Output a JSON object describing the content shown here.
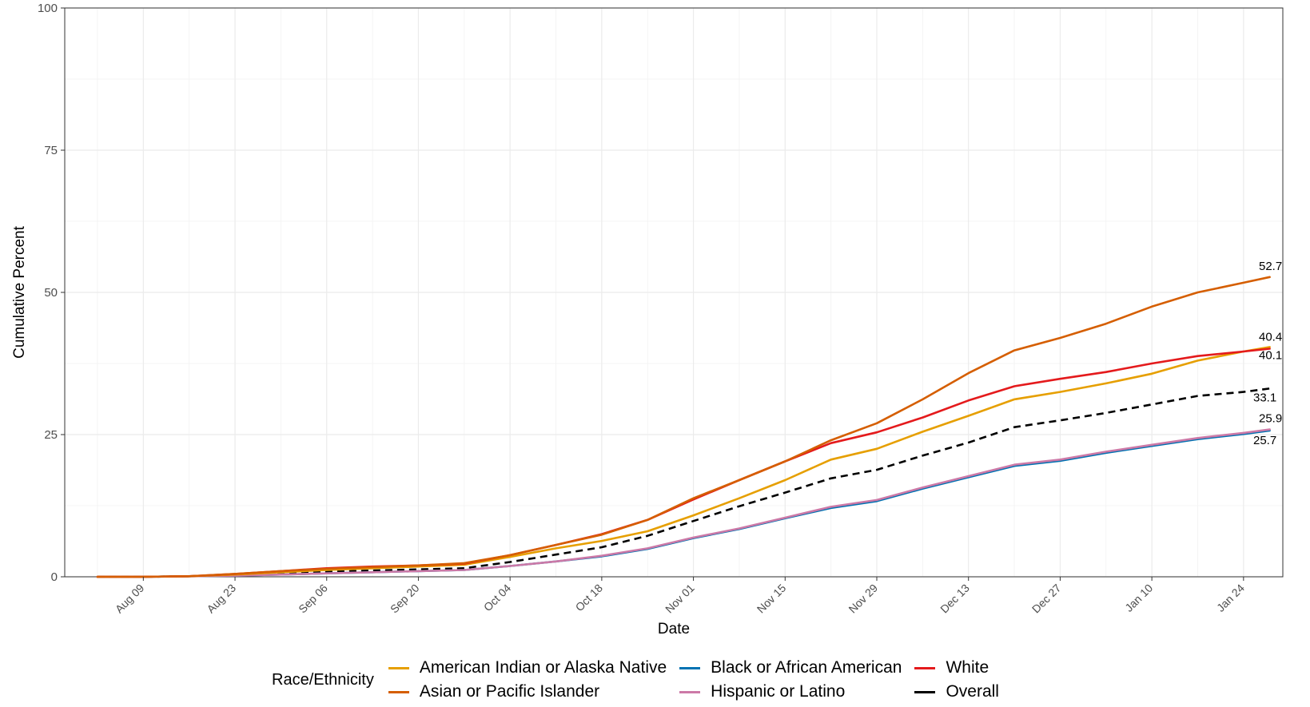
{
  "chart_data": {
    "type": "line",
    "title": "",
    "xlabel": "Date",
    "ylabel": "Cumulative Percent",
    "ylim": [
      0,
      100
    ],
    "yticks": [
      0,
      25,
      50,
      75,
      100
    ],
    "xlim": [
      "2020-07-28",
      "2021-01-30"
    ],
    "xticks": [
      {
        "date": "2020-08-09",
        "label": "Aug 09"
      },
      {
        "date": "2020-08-23",
        "label": "Aug 23"
      },
      {
        "date": "2020-09-06",
        "label": "Sep 06"
      },
      {
        "date": "2020-09-20",
        "label": "Sep 20"
      },
      {
        "date": "2020-10-04",
        "label": "Oct 04"
      },
      {
        "date": "2020-10-18",
        "label": "Oct 18"
      },
      {
        "date": "2020-11-01",
        "label": "Nov 01"
      },
      {
        "date": "2020-11-15",
        "label": "Nov 15"
      },
      {
        "date": "2020-11-29",
        "label": "Nov 29"
      },
      {
        "date": "2020-12-13",
        "label": "Dec 13"
      },
      {
        "date": "2020-12-27",
        "label": "Dec 27"
      },
      {
        "date": "2021-01-10",
        "label": "Jan 10"
      },
      {
        "date": "2021-01-24",
        "label": "Jan 24"
      }
    ],
    "grid": true,
    "legend": {
      "title": "Race/Ethnicity",
      "position": "bottom"
    },
    "x": [
      "2020-08-02",
      "2020-08-09",
      "2020-08-16",
      "2020-08-23",
      "2020-08-30",
      "2020-09-06",
      "2020-09-13",
      "2020-09-20",
      "2020-09-27",
      "2020-10-04",
      "2020-10-11",
      "2020-10-18",
      "2020-10-25",
      "2020-11-01",
      "2020-11-08",
      "2020-11-15",
      "2020-11-22",
      "2020-11-29",
      "2020-12-06",
      "2020-12-13",
      "2020-12-20",
      "2020-12-27",
      "2021-01-03",
      "2021-01-10",
      "2021-01-17",
      "2021-01-24",
      "2021-01-28"
    ],
    "series": [
      {
        "name": "American Indian or Alaska Native",
        "color": "#E69F00",
        "dashed": false,
        "values": [
          0,
          0,
          0.1,
          0.4,
          0.8,
          1.2,
          1.5,
          1.8,
          2.1,
          3.5,
          5.0,
          6.3,
          8.0,
          10.8,
          13.8,
          17.0,
          20.6,
          22.5,
          25.5,
          28.3,
          31.2,
          32.5,
          34.0,
          35.7,
          38.0,
          39.6,
          40.4
        ],
        "end_label": "40.4"
      },
      {
        "name": "Asian or Pacific Islander",
        "color": "#D55E00",
        "dashed": false,
        "values": [
          0,
          0,
          0.1,
          0.5,
          1.0,
          1.4,
          1.7,
          2.0,
          2.4,
          3.8,
          5.6,
          7.4,
          10.0,
          13.8,
          17.0,
          20.3,
          24.0,
          27.0,
          31.2,
          35.8,
          39.8,
          42.0,
          44.5,
          47.5,
          50.0,
          51.7,
          52.7
        ],
        "end_label": "52.7"
      },
      {
        "name": "Black or African American",
        "color": "#0072B2",
        "dashed": false,
        "values": [
          0,
          0,
          0.1,
          0.2,
          0.4,
          0.6,
          0.8,
          1.0,
          1.2,
          1.9,
          2.7,
          3.6,
          4.9,
          6.8,
          8.4,
          10.3,
          12.1,
          13.3,
          15.5,
          17.5,
          19.5,
          20.4,
          21.8,
          23.0,
          24.2,
          25.1,
          25.7
        ],
        "end_label": "25.7"
      },
      {
        "name": "Hispanic or Latino",
        "color": "#CC79A7",
        "dashed": false,
        "values": [
          0,
          0,
          0.1,
          0.2,
          0.4,
          0.6,
          0.8,
          1.0,
          1.2,
          1.9,
          2.7,
          3.7,
          5.0,
          6.9,
          8.5,
          10.4,
          12.3,
          13.5,
          15.7,
          17.7,
          19.7,
          20.6,
          22.0,
          23.2,
          24.4,
          25.3,
          25.9
        ],
        "end_label": "25.9"
      },
      {
        "name": "White",
        "color": "#E41A1C",
        "dashed": false,
        "values": [
          0,
          0,
          0.1,
          0.5,
          1.0,
          1.5,
          1.8,
          2.0,
          2.3,
          3.8,
          5.6,
          7.5,
          10.0,
          13.6,
          17.0,
          20.3,
          23.5,
          25.4,
          28.0,
          31.0,
          33.5,
          34.8,
          36.0,
          37.5,
          38.8,
          39.6,
          40.1
        ],
        "end_label": "40.1"
      },
      {
        "name": "Overall",
        "color": "#000000",
        "dashed": true,
        "values": [
          0,
          0,
          0.1,
          0.3,
          0.6,
          0.9,
          1.1,
          1.3,
          1.5,
          2.6,
          3.9,
          5.2,
          7.2,
          9.8,
          12.4,
          14.8,
          17.3,
          18.8,
          21.3,
          23.6,
          26.3,
          27.5,
          28.8,
          30.3,
          31.8,
          32.5,
          33.1
        ],
        "end_label": "33.1"
      }
    ]
  }
}
